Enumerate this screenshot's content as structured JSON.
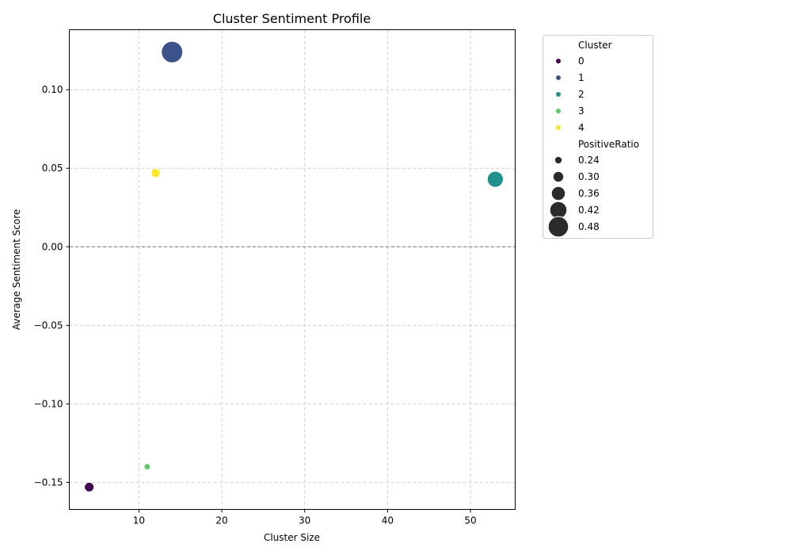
{
  "chart_data": {
    "type": "scatter",
    "title": "Cluster Sentiment Profile",
    "xlabel": "Cluster Size",
    "ylabel": "Average Sentiment Score",
    "xlim": [
      1.6,
      55.4
    ],
    "ylim": [
      -0.1672,
      0.1382
    ],
    "xticks": [
      10,
      20,
      30,
      40,
      50
    ],
    "xtick_labels": [
      "10",
      "20",
      "30",
      "40",
      "50"
    ],
    "yticks": [
      -0.15,
      -0.1,
      -0.05,
      0.0,
      0.05,
      0.1
    ],
    "ytick_labels": [
      "−0.15",
      "−0.10",
      "−0.05",
      "0.00",
      "0.05",
      "0.10"
    ],
    "grid": true,
    "reference_line_y": 0,
    "points": [
      {
        "cluster": "0",
        "x": 4,
        "y": -0.153,
        "positive_ratio": 0.28,
        "color": "#440154"
      },
      {
        "cluster": "1",
        "x": 14,
        "y": 0.124,
        "positive_ratio": 0.5,
        "color": "#3b528b"
      },
      {
        "cluster": "2",
        "x": 53,
        "y": 0.043,
        "positive_ratio": 0.4,
        "color": "#21918c"
      },
      {
        "cluster": "3",
        "x": 11,
        "y": -0.14,
        "positive_ratio": 0.22,
        "color": "#5ec962"
      },
      {
        "cluster": "4",
        "x": 12,
        "y": 0.047,
        "positive_ratio": 0.27,
        "color": "#fde725"
      }
    ],
    "legend": {
      "placement": "outside-right",
      "hue_title": "Cluster",
      "hue_entries": [
        {
          "label": "0",
          "color": "#440154"
        },
        {
          "label": "1",
          "color": "#3b528b"
        },
        {
          "label": "2",
          "color": "#21918c"
        },
        {
          "label": "3",
          "color": "#5ec962"
        },
        {
          "label": "4",
          "color": "#fde725"
        }
      ],
      "size_title": "PositiveRatio",
      "size_entries": [
        {
          "label": "0.24",
          "value": 0.24
        },
        {
          "label": "0.30",
          "value": 0.3
        },
        {
          "label": "0.36",
          "value": 0.36
        },
        {
          "label": "0.42",
          "value": 0.42
        },
        {
          "label": "0.48",
          "value": 0.48
        }
      ]
    }
  }
}
